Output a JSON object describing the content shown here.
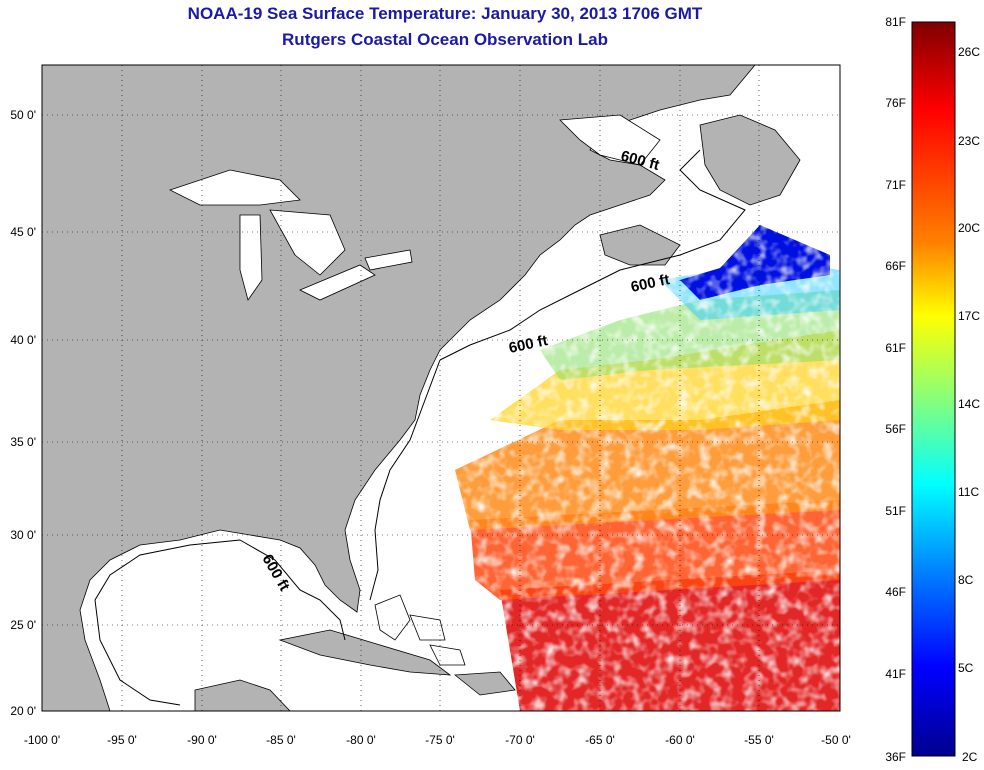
{
  "title": {
    "line1": "NOAA-19 Sea Surface Temperature:  January 30, 2013 1706 GMT",
    "line2": "Rutgers Coastal Ocean Observation Lab"
  },
  "map": {
    "lon_range": [
      -100,
      -50
    ],
    "lat_range": [
      20,
      52
    ],
    "lon_ticks": [
      "-100 0'",
      "-95 0'",
      "-90 0'",
      "-85 0'",
      "-80 0'",
      "-75 0'",
      "-70 0'",
      "-65 0'",
      "-60 0'",
      "-55 0'",
      "-50 0'"
    ],
    "lat_ticks": [
      "20 0'",
      "25 0'",
      "30 0'",
      "35 0'",
      "40 0'",
      "45 0'",
      "50 0'"
    ],
    "grid": "dotted",
    "land_color": "#b3b3b3",
    "depth_labels": [
      "600 ft",
      "600 ft",
      "600 ft",
      "600 ft"
    ]
  },
  "colorbar": {
    "f_labels": [
      "81F",
      "76F",
      "71F",
      "66F",
      "61F",
      "56F",
      "51F",
      "46F",
      "41F",
      "36F"
    ],
    "c_labels": [
      "26C",
      "23C",
      "20C",
      "17C",
      "14C",
      "11C",
      "8C",
      "5C",
      "2C"
    ],
    "colors": [
      "#7f0000",
      "#ff0000",
      "#ff8000",
      "#ffff00",
      "#80ff80",
      "#00ffff",
      "#0080ff",
      "#0000ff",
      "#00008f"
    ]
  }
}
